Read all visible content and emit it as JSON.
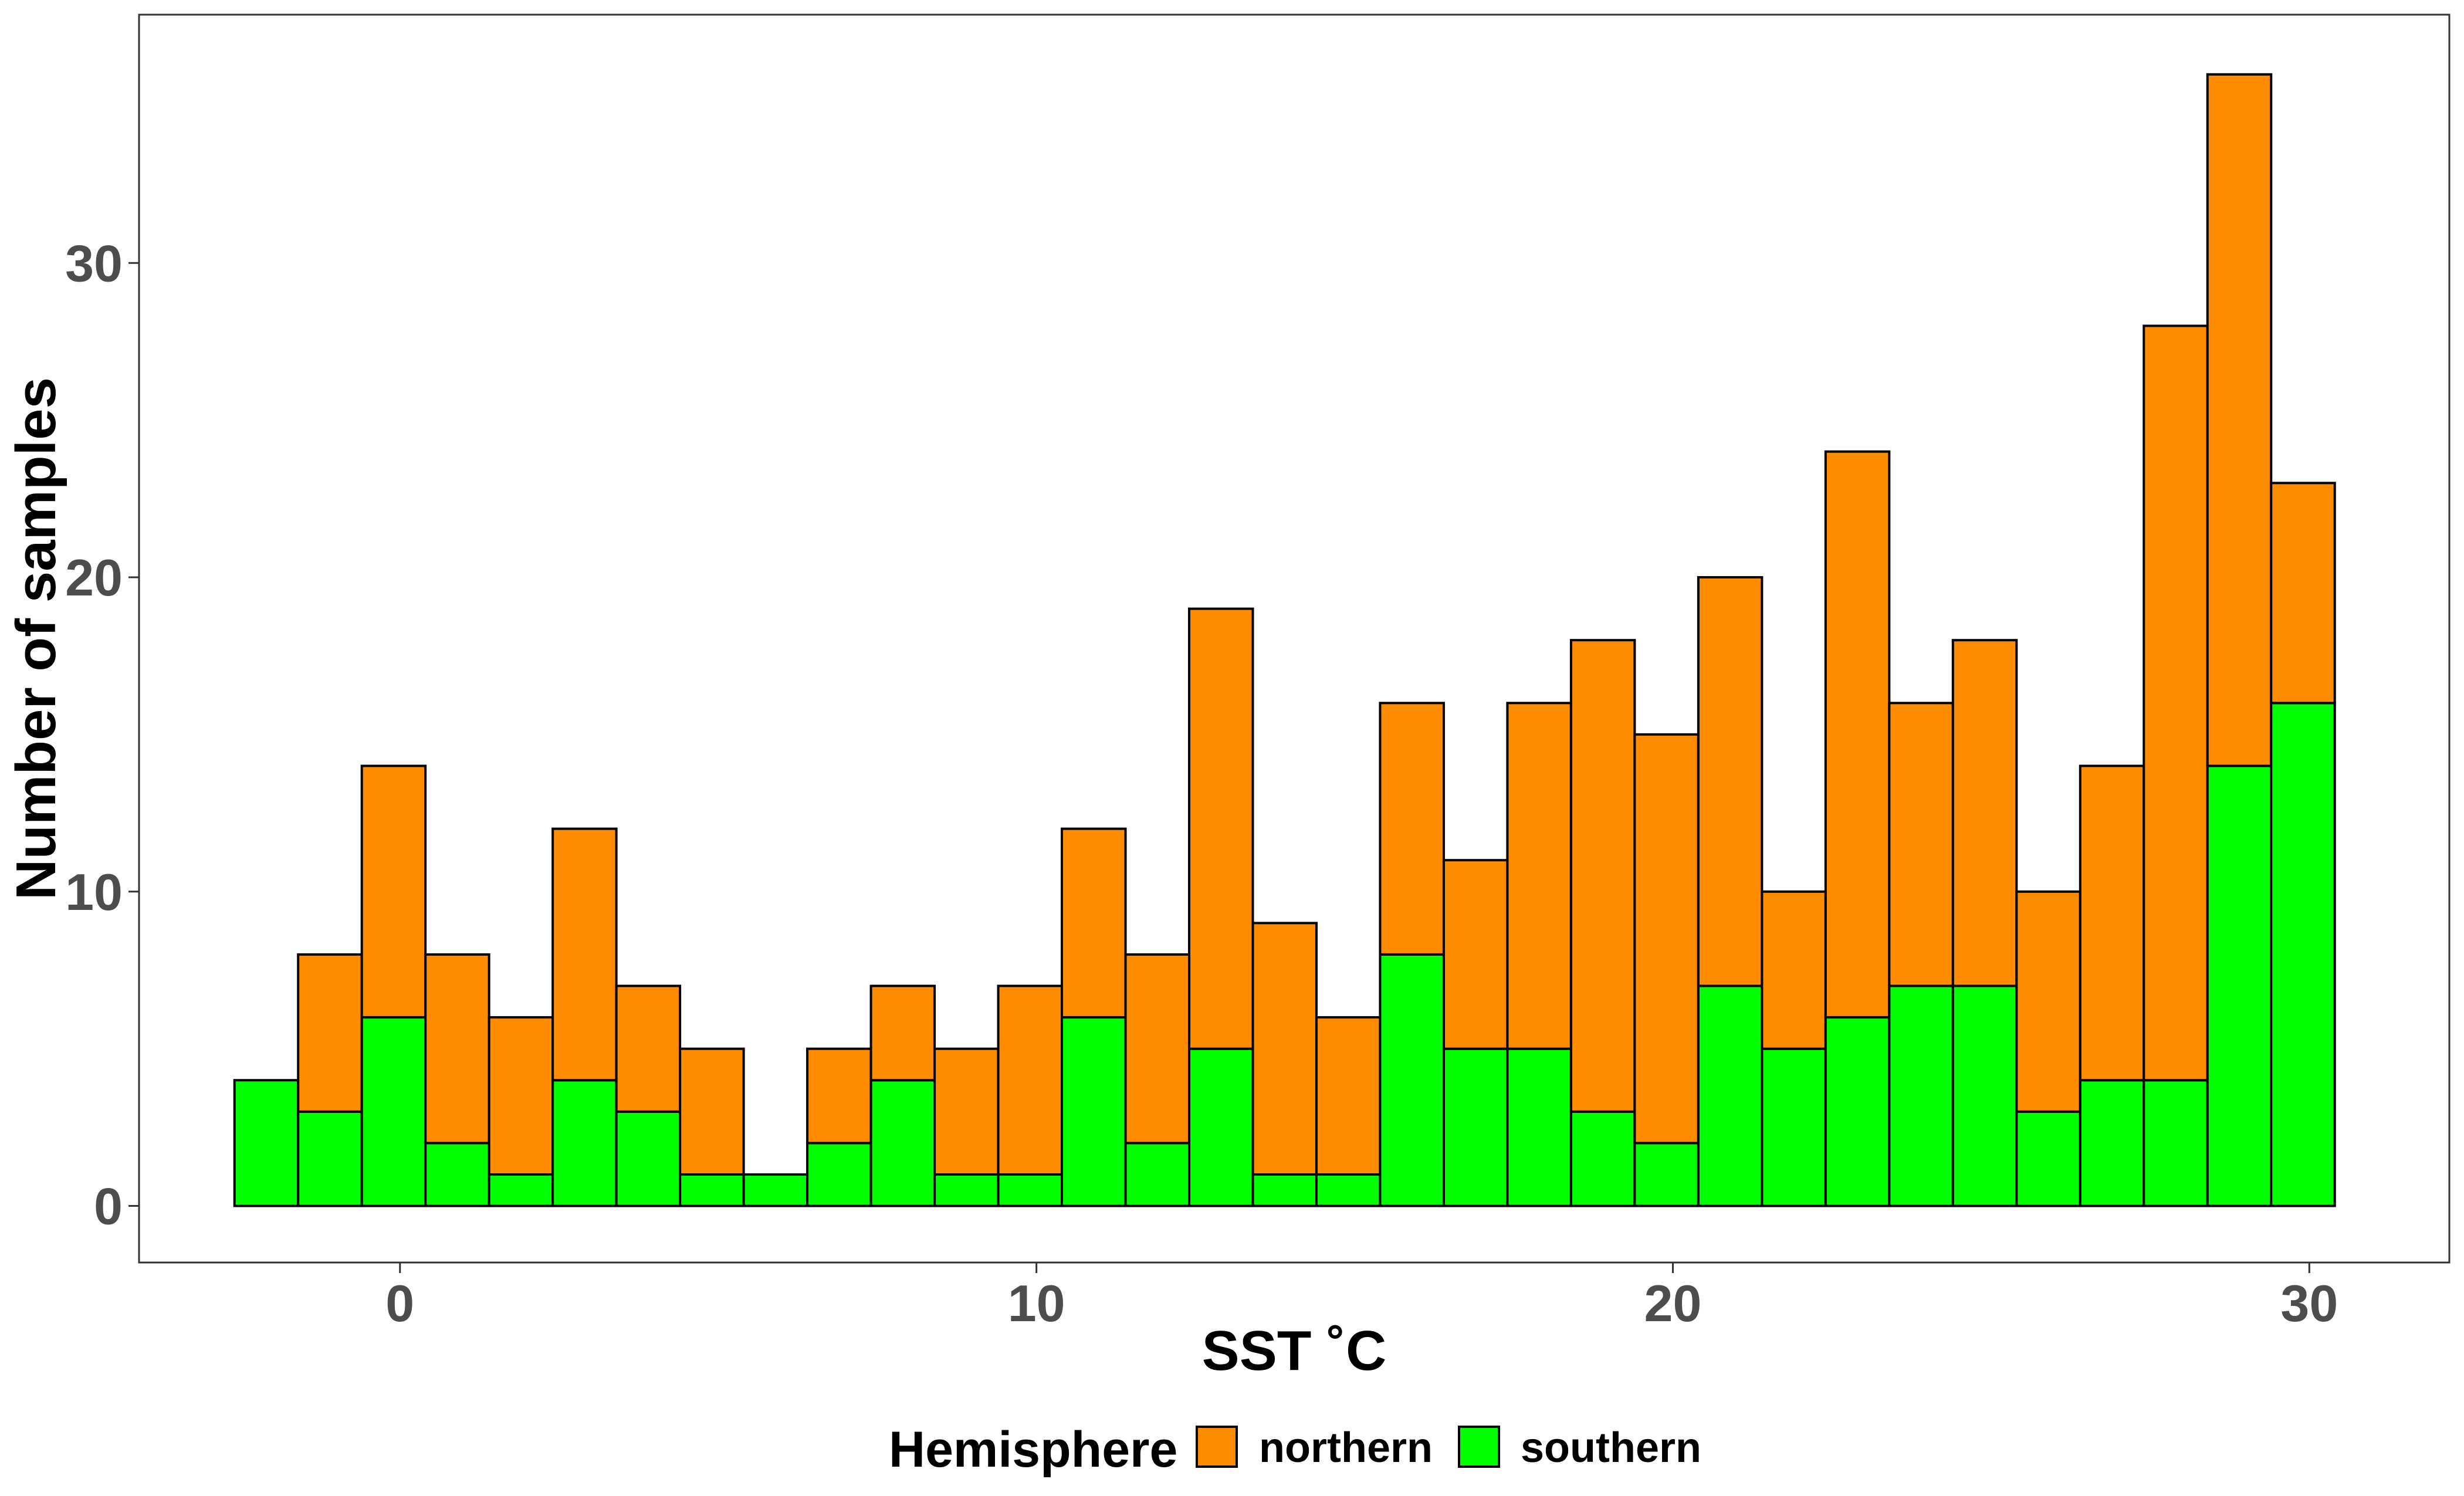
{
  "chart_data": {
    "type": "bar",
    "stacked": true,
    "title": "",
    "xlabel": "SST ˚C",
    "ylabel": "Number of samples",
    "x_ticks": [
      0,
      10,
      20,
      30
    ],
    "y_ticks": [
      0,
      10,
      20,
      30
    ],
    "xlim": [
      -4.1,
      32.2
    ],
    "ylim": [
      -1.8,
      37.9
    ],
    "grid": false,
    "bins": [
      -2.1,
      -1.1,
      -0.1,
      0.9,
      1.9,
      2.9,
      3.9,
      4.9,
      5.9,
      6.9,
      7.9,
      8.9,
      9.9,
      10.9,
      11.9,
      12.9,
      13.9,
      14.9,
      15.9,
      16.9,
      17.9,
      18.9,
      19.9,
      20.9,
      21.9,
      22.9,
      23.9,
      24.9,
      25.9,
      26.9,
      27.9,
      28.9,
      29.9
    ],
    "bin_width": 1.0,
    "series": [
      {
        "name": "southern",
        "color": "#00ff00",
        "values": [
          4,
          3,
          6,
          2,
          1,
          4,
          3,
          1,
          1,
          2,
          4,
          1,
          1,
          6,
          2,
          5,
          1,
          1,
          8,
          5,
          5,
          3,
          2,
          7,
          5,
          6,
          7,
          7,
          3,
          4,
          4,
          14,
          16
        ]
      },
      {
        "name": "northern",
        "color": "#ff8c00",
        "values": [
          0,
          5,
          8,
          6,
          5,
          8,
          4,
          4,
          0,
          3,
          3,
          4,
          6,
          6,
          6,
          14,
          8,
          5,
          8,
          6,
          11,
          15,
          13,
          13,
          5,
          18,
          9,
          11,
          7,
          10,
          24,
          22,
          7
        ]
      }
    ],
    "legend": {
      "title": "Hemisphere",
      "position": "bottom",
      "items": [
        "northern",
        "southern"
      ]
    }
  }
}
